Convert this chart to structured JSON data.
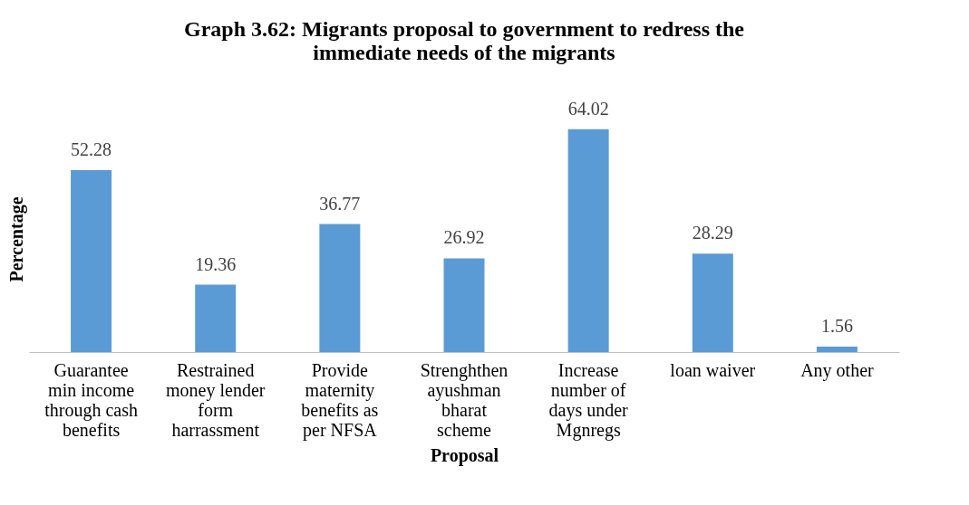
{
  "chart_data": {
    "type": "bar",
    "title": "Graph 3.62:  Migrants proposal to government to redress the immediate needs of the migrants",
    "xlabel": "Proposal",
    "ylabel": "Percentage",
    "categories": [
      "Guarantee min income through cash benefits",
      "Restrained money lender form harrassment",
      "Provide maternity benefits as per NFSA",
      "Strenghthen ayushman bharat scheme",
      "Increase number of days under Mgnregs",
      "loan waiver",
      "Any other"
    ],
    "values": [
      52.28,
      19.36,
      36.77,
      26.92,
      64.02,
      28.29,
      1.56
    ],
    "color": "#5b9bd5",
    "data_labels": true,
    "grid": false
  }
}
